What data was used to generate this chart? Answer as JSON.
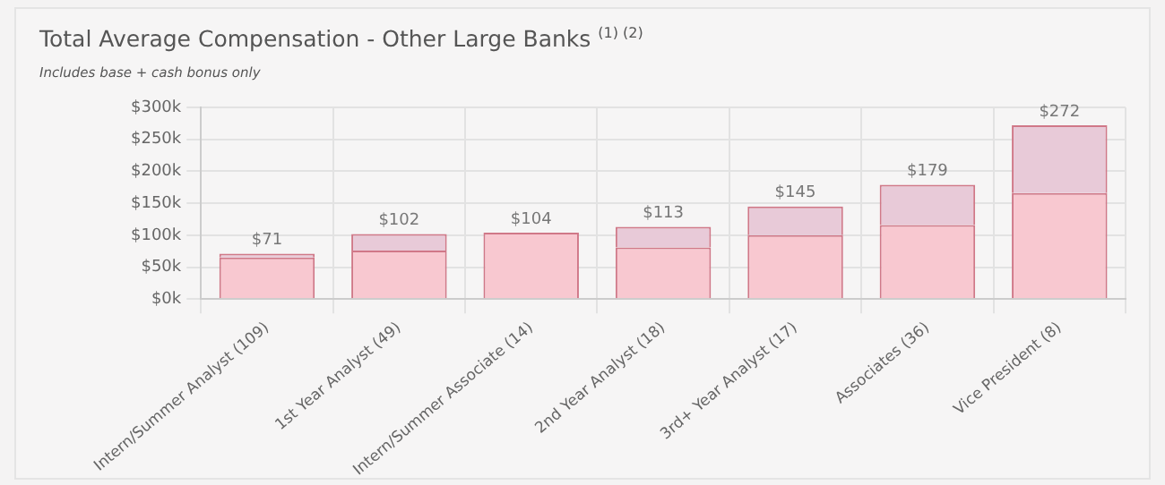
{
  "chart_data": {
    "type": "bar",
    "title": "Total Average Compensation - Other Large Banks $^{(1) (2)}$",
    "subtitle": "Includes base + cash bonus only",
    "categories": [
      "Intern/Summer Analyst (109)",
      "1st Year Analyst (49)",
      "Intern/Summer Associate (14)",
      "2nd Year Analyst (18)",
      "3rd+ Year Analyst (17)",
      "Associates (36)",
      "Vice President (8)"
    ],
    "series": [
      {
        "color": "#f8c8d0",
        "values": [
          65,
          76,
          104,
          81,
          100,
          116,
          166
        ]
      },
      {
        "color": "#e8cad8",
        "values": [
          6,
          26,
          0,
          32,
          45,
          63,
          106
        ]
      }
    ],
    "stacked": true,
    "totals": [
      "$71",
      "$102",
      "$104",
      "$113",
      "$145",
      "$179",
      "$272"
    ],
    "ylim": [
      0,
      300
    ],
    "yticks": [
      {
        "value": 0,
        "label": "$0k"
      },
      {
        "value": 50,
        "label": "$50k"
      },
      {
        "value": 100,
        "label": "$100k"
      },
      {
        "value": 150,
        "label": "$150k"
      },
      {
        "value": 200,
        "label": "$200k"
      },
      {
        "value": 250,
        "label": "$250k"
      },
      {
        "value": 300,
        "label": "$300k"
      }
    ],
    "grid": true,
    "legend": false
  }
}
